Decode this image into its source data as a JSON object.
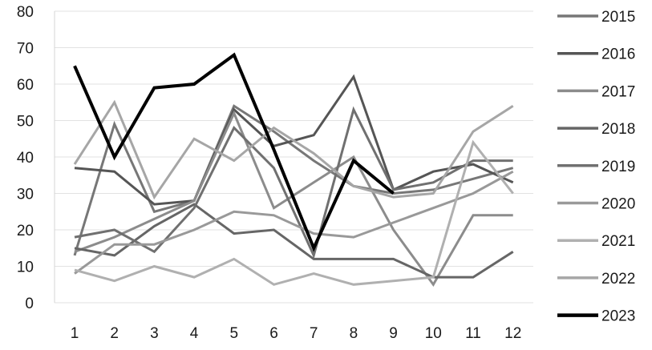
{
  "chart_data": {
    "type": "line",
    "title": "",
    "xlabel": "",
    "ylabel": "",
    "x": [
      1,
      2,
      3,
      4,
      5,
      6,
      7,
      8,
      9,
      10,
      11,
      12
    ],
    "ylim": [
      0,
      80
    ],
    "yticks": [
      0,
      10,
      20,
      30,
      40,
      50,
      60,
      70,
      80
    ],
    "grid": "horizontal",
    "legend_position": "right",
    "series": [
      {
        "name": "2015",
        "color": "#777777",
        "width": 3,
        "values": [
          13,
          49,
          25,
          28,
          54,
          47,
          39,
          32,
          30,
          31,
          34,
          37
        ]
      },
      {
        "name": "2016",
        "color": "#555555",
        "width": 3,
        "values": [
          37,
          36,
          27,
          28,
          53,
          43,
          46,
          62,
          31,
          36,
          38,
          33
        ]
      },
      {
        "name": "2017",
        "color": "#8c8c8c",
        "width": 3,
        "values": [
          14,
          18,
          23,
          28,
          52,
          26,
          33,
          40,
          20,
          5,
          24,
          24
        ]
      },
      {
        "name": "2018",
        "color": "#666666",
        "width": 3,
        "values": [
          15,
          13,
          21,
          27,
          19,
          20,
          12,
          12,
          12,
          7,
          7,
          14
        ]
      },
      {
        "name": "2019",
        "color": "#707070",
        "width": 3,
        "values": [
          18,
          20,
          14,
          26,
          48,
          37,
          13,
          53,
          31,
          33,
          39,
          39
        ]
      },
      {
        "name": "2020",
        "color": "#999999",
        "width": 3,
        "values": [
          8,
          16,
          16,
          20,
          25,
          24,
          19,
          18,
          22,
          26,
          30,
          36
        ]
      },
      {
        "name": "2021",
        "color": "#b0b0b0",
        "width": 3,
        "values": [
          9,
          6,
          10,
          7,
          12,
          5,
          8,
          5,
          6,
          7,
          44,
          30
        ]
      },
      {
        "name": "2022",
        "color": "#a6a6a6",
        "width": 3,
        "values": [
          38,
          55,
          29,
          45,
          39,
          48,
          41,
          32,
          29,
          30,
          47,
          54
        ]
      },
      {
        "name": "2023",
        "color": "#000000",
        "width": 4,
        "values": [
          65,
          40,
          59,
          60,
          68,
          42,
          15,
          39,
          30,
          null,
          null,
          null
        ]
      }
    ]
  }
}
